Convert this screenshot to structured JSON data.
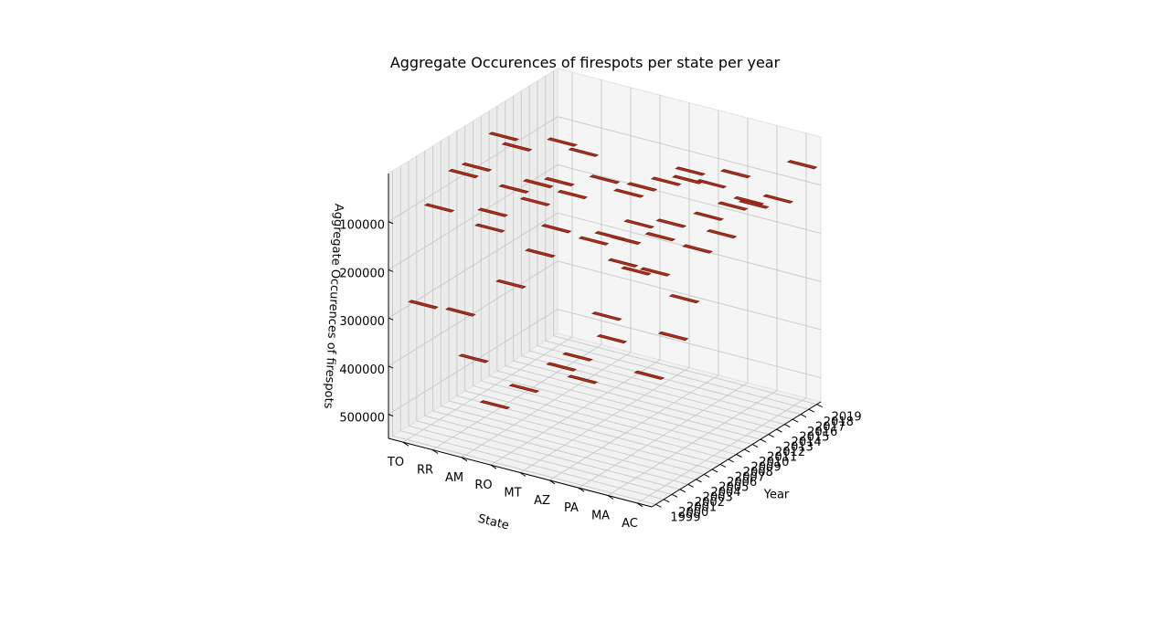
{
  "chart_data": {
    "type": "bar3d",
    "title": "Aggregate Occurences of firespots per state per year",
    "xlabel": "State",
    "ylabel": "Year",
    "zlabel": "Aggregate Occurences of firespots",
    "states": [
      "TO",
      "RR",
      "AM",
      "RO",
      "MT",
      "AZ",
      "PA",
      "MA",
      "AC"
    ],
    "year_ticks": [
      1999,
      2000,
      2001,
      2002,
      2003,
      2004,
      2005,
      2006,
      2007,
      2008,
      2009,
      2010,
      2011,
      2012,
      2013,
      2014,
      2015,
      2016,
      2017,
      2018,
      2019
    ],
    "z_ticks": [
      100000,
      200000,
      300000,
      400000,
      500000
    ],
    "zlim": [
      0,
      550000
    ],
    "bar_color": "#b0301b",
    "points": [
      {
        "state": "TO",
        "year": 2001,
        "value": 290000
      },
      {
        "state": "TO",
        "year": 2003,
        "value": 110000
      },
      {
        "state": "TO",
        "year": 2006,
        "value": 70000
      },
      {
        "state": "TO",
        "year": 2011,
        "value": 45000
      },
      {
        "state": "RR",
        "year": 2002,
        "value": 300000
      },
      {
        "state": "RR",
        "year": 2004,
        "value": 20000
      },
      {
        "state": "RR",
        "year": 2006,
        "value": 135000
      },
      {
        "state": "RR",
        "year": 2009,
        "value": 30000
      },
      {
        "state": "AM",
        "year": 2000,
        "value": 360000
      },
      {
        "state": "AM",
        "year": 2002,
        "value": 110000
      },
      {
        "state": "AM",
        "year": 2005,
        "value": 60000
      },
      {
        "state": "AM",
        "year": 2008,
        "value": 80000
      },
      {
        "state": "AM",
        "year": 2011,
        "value": 25000
      },
      {
        "state": "RO",
        "year": 1999,
        "value": 430000
      },
      {
        "state": "RO",
        "year": 2001,
        "value": 200000
      },
      {
        "state": "RO",
        "year": 2004,
        "value": 60000
      },
      {
        "state": "RO",
        "year": 2007,
        "value": 50000
      },
      {
        "state": "RO",
        "year": 2010,
        "value": 20000
      },
      {
        "state": "MT",
        "year": 1999,
        "value": 380000
      },
      {
        "state": "MT",
        "year": 2001,
        "value": 120000
      },
      {
        "state": "MT",
        "year": 2003,
        "value": 90000
      },
      {
        "state": "MT",
        "year": 2005,
        "value": 40000
      },
      {
        "state": "MT",
        "year": 2009,
        "value": 50000
      },
      {
        "state": "MT",
        "year": 2012,
        "value": 110000
      },
      {
        "state": "AZ",
        "year": 2000,
        "value": 330000
      },
      {
        "state": "AZ",
        "year": 2002,
        "value": 330000
      },
      {
        "state": "AZ",
        "year": 2004,
        "value": 110000
      },
      {
        "state": "AZ",
        "year": 2006,
        "value": 120000
      },
      {
        "state": "AZ",
        "year": 2008,
        "value": 150000
      },
      {
        "state": "AZ",
        "year": 2010,
        "value": 60000
      },
      {
        "state": "AZ",
        "year": 2013,
        "value": 80000
      },
      {
        "state": "AZ",
        "year": 2016,
        "value": 90000
      },
      {
        "state": "PA",
        "year": 1999,
        "value": 330000
      },
      {
        "state": "PA",
        "year": 2002,
        "value": 230000
      },
      {
        "state": "PA",
        "year": 2004,
        "value": 140000
      },
      {
        "state": "PA",
        "year": 2006,
        "value": 80000
      },
      {
        "state": "PA",
        "year": 2008,
        "value": 200000
      },
      {
        "state": "PA",
        "year": 2010,
        "value": 120000
      },
      {
        "state": "PA",
        "year": 2012,
        "value": 50000
      },
      {
        "state": "PA",
        "year": 2015,
        "value": 90000
      },
      {
        "state": "PA",
        "year": 2018,
        "value": 100000
      },
      {
        "state": "MA",
        "year": 1999,
        "value": 230000
      },
      {
        "state": "MA",
        "year": 2002,
        "value": 120000
      },
      {
        "state": "MA",
        "year": 2005,
        "value": 80000
      },
      {
        "state": "MA",
        "year": 2008,
        "value": 240000
      },
      {
        "state": "MA",
        "year": 2011,
        "value": 100000
      },
      {
        "state": "MA",
        "year": 2014,
        "value": 110000
      },
      {
        "state": "MA",
        "year": 2016,
        "value": 120000
      },
      {
        "state": "AC",
        "year": 2000,
        "value": 300000
      },
      {
        "state": "AC",
        "year": 2003,
        "value": 250000
      },
      {
        "state": "AC",
        "year": 2006,
        "value": 100000
      },
      {
        "state": "AC",
        "year": 2009,
        "value": 100000
      },
      {
        "state": "AC",
        "year": 2013,
        "value": 80000
      },
      {
        "state": "AC",
        "year": 2016,
        "value": 100000
      },
      {
        "state": "AC",
        "year": 2019,
        "value": 60000
      }
    ]
  }
}
